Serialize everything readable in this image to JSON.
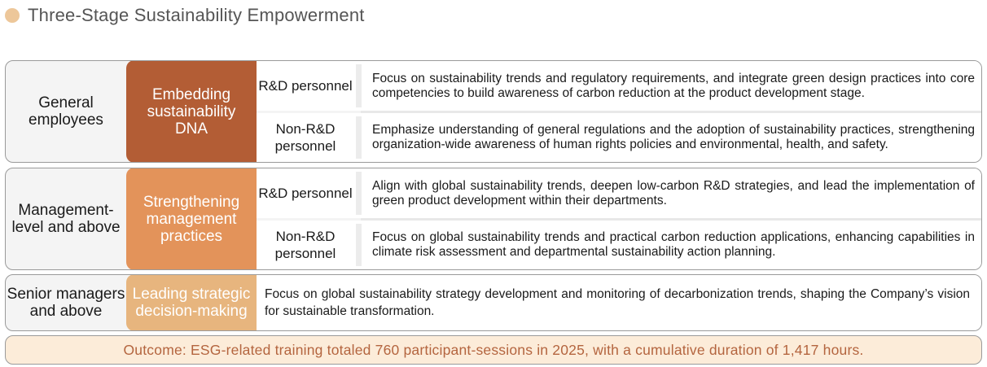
{
  "title": "Three-Stage Sustainability Empowerment",
  "colors": {
    "title_dot": "#edc79a",
    "stage1": "#b35d35",
    "stage2": "#e3935a",
    "stage3": "#e7b57e",
    "outcome_bg": "#fcecd9",
    "outcome_text": "#b4653f"
  },
  "stages": [
    {
      "audience": "General employees",
      "focus": "Embedding sustainability DNA",
      "roles": [
        {
          "role": "R&D personnel",
          "description": "Focus on sustainability trends and regulatory requirements, and integrate green design practices into core competencies to build awareness of carbon reduction at the product development stage."
        },
        {
          "role": "Non-R&D personnel",
          "description": "Emphasize understanding of general regulations and the adoption of sustainability practices, strengthening organization-wide awareness of human rights policies and environmental, health, and safety."
        }
      ]
    },
    {
      "audience": "Management-level and above",
      "focus": "Strengthening management practices",
      "roles": [
        {
          "role": "R&D personnel",
          "description": "Align with global sustainability trends, deepen low-carbon R&D strategies, and lead the implementation of green product development within their departments."
        },
        {
          "role": "Non-R&D personnel",
          "description": "Focus on global sustainability trends and practical carbon reduction applications, enhancing capabilities in climate risk assessment and departmental sustainability action planning."
        }
      ]
    },
    {
      "audience": "Senior managers and above",
      "focus": "Leading strategic decision-making",
      "description": "Focus on global sustainability strategy development and monitoring of decarbonization trends, shaping the Company’s vision for sustainable transformation."
    }
  ],
  "outcome": "Outcome: ESG-related training totaled 760 participant-sessions in 2025, with a cumulative duration of 1,417 hours."
}
